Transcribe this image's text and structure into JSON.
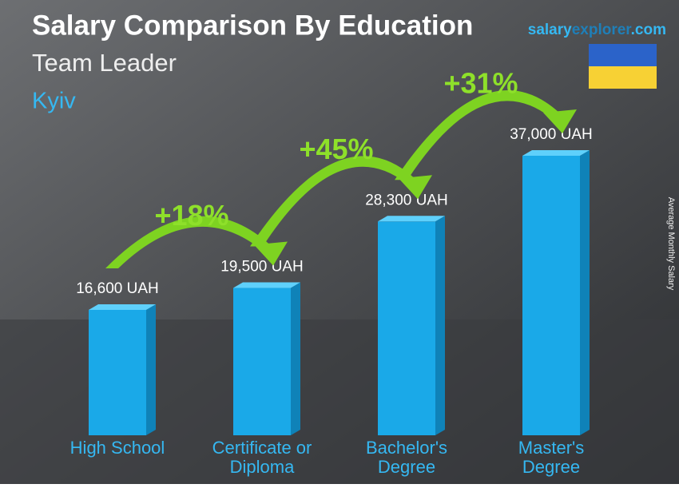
{
  "chart_data": {
    "type": "bar3d",
    "title": "Salary Comparison By Education",
    "subtitle": "Team Leader",
    "location": "Kyiv",
    "site": [
      "salary",
      "explorer",
      ".com"
    ],
    "y_label": "Average Monthly Salary",
    "categories": [
      "High School",
      "Certificate or Diploma",
      "Bachelor's Degree",
      "Master's Degree"
    ],
    "values": [
      16600,
      19500,
      28300,
      37000
    ],
    "value_labels": [
      "16,600 UAH",
      "19,500 UAH",
      "28,300 UAH",
      "37,000 UAH"
    ],
    "changes": [
      "+18%",
      "+45%",
      "+31%"
    ],
    "color": "#1aa9e8"
  }
}
